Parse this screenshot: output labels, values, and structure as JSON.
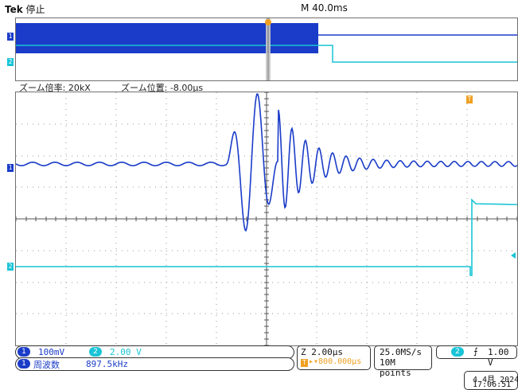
{
  "header": {
    "brand": "Tek",
    "status": "停止",
    "timebase": "M 40.0ms"
  },
  "overview": {
    "ch1_marker": "1",
    "ch2_marker": "2"
  },
  "zoom": {
    "factor_label": "ズーム倍率: 20kX",
    "position_label": "ズーム位置: -8.00µs"
  },
  "main": {
    "ch1_marker": "1",
    "ch2_marker": "2",
    "trigger_marker": "T"
  },
  "bottom": {
    "ch1_badge": "1",
    "ch1_scale": "100mV",
    "ch2_badge": "2",
    "ch2_scale": "2.00 V",
    "meas_badge": "1",
    "meas_name": "周波数",
    "meas_value": "897.5kHz",
    "zoom_scale": "Z 2.00µs",
    "trig_pos_prefix": "T",
    "trig_pos": "▸▾800.000µs",
    "sample_rate": "25.0MS/s",
    "record_length": "10M points",
    "trig_src_badge": "2",
    "trig_slope": "⨍",
    "trig_level": "1.00 V",
    "date": "4 4月 2024",
    "time": "17:06:51"
  },
  "colors": {
    "ch1": "#1a3cc8",
    "ch2": "#19c4d6",
    "trigger": "#f0a020"
  }
}
